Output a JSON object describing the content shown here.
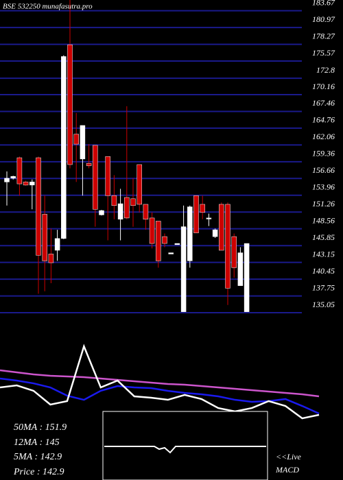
{
  "chart_data": [
    {
      "type": "candlestick",
      "title": "BSE 532250  munafasutra.pro",
      "open": [
        156.1,
        156.7,
        160.0,
        156.1,
        155.6,
        160.0,
        150.9,
        144.5,
        145.1,
        147.0,
        178.2,
        163.8,
        159.8,
        159.1,
        162.0,
        150.8,
        160.2,
        153.9,
        150.1,
        153.6,
        153.4,
        158.9,
        152.5,
        150.3,
        149.8,
        147.3,
        144.5,
        146.0,
        135.2,
        143.4,
        153.9,
        152.5,
        150.2,
        147.3,
        152.5,
        152.5,
        147.3,
        139.4,
        135.2
      ],
      "high": [
        157.8,
        157.1,
        160.2,
        156.3,
        156.5,
        160.2,
        153.9,
        148.6,
        148.4,
        176.5,
        185.4,
        167.2,
        165.2,
        162.2,
        162.0,
        151.6,
        160.2,
        157.2,
        155.0,
        168.3,
        156.7,
        158.9,
        152.5,
        151.2,
        149.8,
        147.8,
        144.7,
        146.2,
        152.3,
        152.3,
        153.9,
        153.9,
        151.0,
        148.6,
        152.8,
        152.8,
        147.8,
        145.6,
        146.2
      ],
      "low": [
        152.3,
        156.5,
        153.9,
        155.5,
        151.7,
        138.1,
        138.5,
        139.8,
        143.4,
        146.9,
        158.3,
        156.1,
        153.9,
        158.3,
        148.9,
        150.7,
        146.7,
        150.1,
        146.7,
        150.1,
        148.9,
        151.2,
        148.4,
        145.4,
        142.3,
        145.6,
        144.5,
        146.0,
        135.2,
        142.3,
        147.9,
        150.1,
        149.0,
        147.1,
        145.1,
        136.3,
        140.7,
        139.4,
        135.2
      ],
      "close": [
        156.7,
        157.0,
        155.8,
        155.6,
        156.1,
        144.3,
        143.4,
        143.1,
        147.0,
        176.3,
        158.9,
        162.2,
        165.2,
        158.7,
        151.7,
        151.5,
        153.9,
        152.3,
        152.6,
        150.3,
        152.3,
        152.5,
        150.1,
        146.2,
        143.4,
        146.2,
        144.7,
        146.2,
        148.9,
        152.1,
        147.9,
        151.2,
        150.3,
        148.4,
        145.1,
        139.0,
        142.3,
        144.7,
        146.2
      ],
      "up_color": "#ffffff",
      "down_color": "#cc0000",
      "ylim": [
        134.5,
        185.4
      ],
      "yticks": [
        183.67,
        180.97,
        178.27,
        175.57,
        172.8,
        170.16,
        167.46,
        164.76,
        162.06,
        159.36,
        156.66,
        153.96,
        151.26,
        148.56,
        145.85,
        143.15,
        140.45,
        137.75,
        135.05
      ],
      "grid": true,
      "grid_color": "#1a1a8c"
    },
    {
      "type": "line",
      "ylim": [
        0,
        100
      ],
      "series": [
        {
          "color": "#cc55cc",
          "values": [
            66.7,
            64.2,
            61.7,
            60,
            59.2,
            58.3,
            56.7,
            55,
            53.3,
            51.7,
            50,
            49.2,
            47.5,
            45.8,
            44.2,
            42.5,
            40.8,
            39.2,
            37.5,
            35
          ]
        },
        {
          "color": "#1a1aee",
          "values": [
            56.7,
            54.2,
            50.8,
            45.8,
            35.8,
            30.8,
            41.7,
            47.5,
            45.8,
            45,
            41.7,
            39.2,
            37.5,
            35,
            30.8,
            28.3,
            29.2,
            31.7,
            23.3,
            14.2
          ]
        },
        {
          "color": "#ffffff",
          "values": [
            45.8,
            48.3,
            41.7,
            25,
            29.2,
            95.8,
            45.8,
            54.2,
            35,
            33.3,
            30.8,
            36.7,
            31.7,
            20.8,
            16.7,
            20.8,
            29.2,
            23.3,
            8.3,
            12.5
          ]
        }
      ]
    }
  ],
  "stats": [
    "50MA : 151.9",
    "12MA : 145",
    "5MA : 142.9",
    "Price  : 142.9"
  ],
  "live": "<<Live",
  "macd": "MACD"
}
